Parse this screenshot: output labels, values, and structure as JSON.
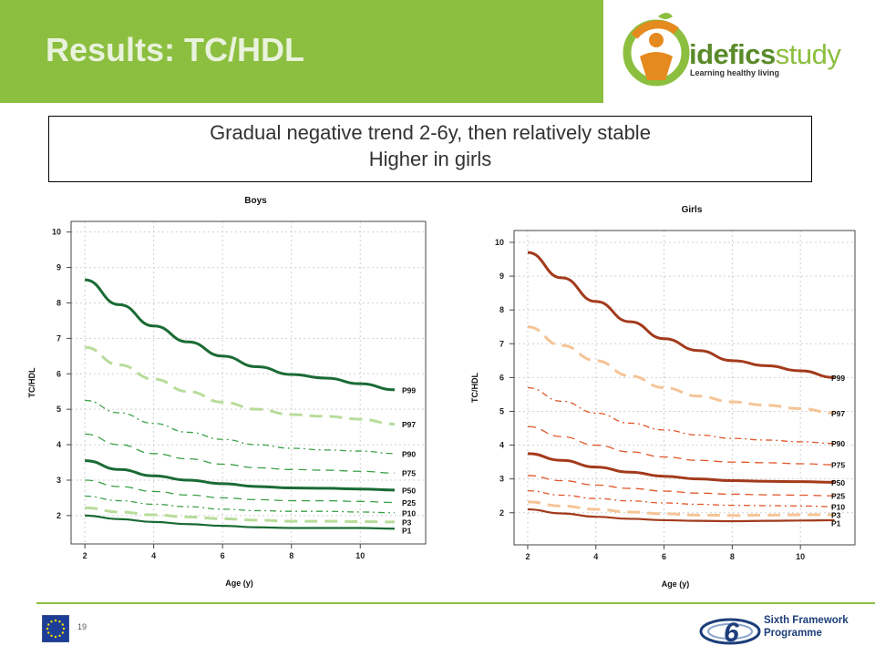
{
  "slide": {
    "title": "Results: TC/HDL",
    "summary_line1": "Gradual negative trend 2-6y, then relatively stable",
    "summary_line2": "Higher in girls",
    "page_number": "19"
  },
  "logo": {
    "wordmark_bold": "idefics",
    "wordmark_light": "study",
    "tagline": "Learning healthy living"
  },
  "footer": {
    "programme_line1": "Sixth Framework",
    "programme_line2": "Programme"
  },
  "colors": {
    "header_green": "#8cbf3f",
    "boys_dark": "#1a6b34",
    "boys_mid": "#3da14a",
    "boys_light": "#b8dc9a",
    "girls_dark": "#a33a1c",
    "girls_mid": "#e0562a",
    "girls_light": "#f5c496",
    "eu_blue": "#1d3e96",
    "eu_star": "#ffdd00"
  },
  "chart_data": [
    {
      "type": "line",
      "title": "Boys",
      "xlabel": "Age (y)",
      "ylabel": "TC/HDL",
      "xlim": [
        1.6,
        11.9
      ],
      "ylim": [
        1.2,
        10.3
      ],
      "xticks": [
        2,
        4,
        6,
        8,
        10
      ],
      "yticks": [
        2,
        3,
        4,
        5,
        6,
        7,
        8,
        9,
        10
      ],
      "grid": true,
      "x": [
        2,
        3,
        4,
        5,
        6,
        7,
        8,
        9,
        10,
        11
      ],
      "series": [
        {
          "name": "P99",
          "style": "solid",
          "width": "thick",
          "tone": "dark",
          "values": [
            8.65,
            7.95,
            7.35,
            6.9,
            6.5,
            6.2,
            5.98,
            5.88,
            5.72,
            5.55
          ]
        },
        {
          "name": "P97",
          "style": "dash",
          "width": "thick",
          "tone": "light",
          "values": [
            6.75,
            6.25,
            5.85,
            5.5,
            5.2,
            5.0,
            4.85,
            4.8,
            4.72,
            4.58
          ]
        },
        {
          "name": "P90",
          "style": "dashdot",
          "width": "thin",
          "tone": "mid",
          "values": [
            5.25,
            4.9,
            4.6,
            4.35,
            4.15,
            4.0,
            3.9,
            3.85,
            3.82,
            3.75
          ]
        },
        {
          "name": "P75",
          "style": "dash",
          "width": "thin",
          "tone": "mid",
          "values": [
            4.3,
            4.0,
            3.75,
            3.6,
            3.45,
            3.35,
            3.3,
            3.28,
            3.25,
            3.2
          ]
        },
        {
          "name": "P50",
          "style": "solid",
          "width": "thick",
          "tone": "dark",
          "values": [
            3.55,
            3.3,
            3.12,
            3.0,
            2.9,
            2.82,
            2.78,
            2.77,
            2.75,
            2.72
          ]
        },
        {
          "name": "P25",
          "style": "dash",
          "width": "thin",
          "tone": "mid",
          "values": [
            3.0,
            2.82,
            2.68,
            2.58,
            2.5,
            2.45,
            2.42,
            2.42,
            2.4,
            2.37
          ]
        },
        {
          "name": "P10",
          "style": "dashdot",
          "width": "thin",
          "tone": "mid",
          "values": [
            2.55,
            2.42,
            2.32,
            2.25,
            2.18,
            2.14,
            2.12,
            2.12,
            2.1,
            2.08
          ]
        },
        {
          "name": "P3",
          "style": "dash",
          "width": "thick",
          "tone": "light",
          "values": [
            2.22,
            2.1,
            2.02,
            1.96,
            1.91,
            1.87,
            1.84,
            1.84,
            1.83,
            1.82
          ]
        },
        {
          "name": "P1",
          "style": "solid",
          "width": "medium",
          "tone": "dark",
          "values": [
            2.0,
            1.9,
            1.82,
            1.76,
            1.71,
            1.67,
            1.65,
            1.65,
            1.65,
            1.63
          ]
        }
      ]
    },
    {
      "type": "line",
      "title": "Girls",
      "xlabel": "Age (y)",
      "ylabel": "TC/HDL",
      "xlim": [
        1.6,
        11.6
      ],
      "ylim": [
        1.05,
        10.35
      ],
      "xticks": [
        2,
        4,
        6,
        8,
        10
      ],
      "yticks": [
        2,
        3,
        4,
        5,
        6,
        7,
        8,
        9,
        10
      ],
      "grid": true,
      "x": [
        2,
        3,
        4,
        5,
        6,
        7,
        8,
        9,
        10,
        11
      ],
      "series": [
        {
          "name": "P99",
          "style": "solid",
          "width": "thick",
          "tone": "dark",
          "values": [
            9.7,
            8.95,
            8.25,
            7.65,
            7.15,
            6.8,
            6.5,
            6.35,
            6.2,
            6.0
          ]
        },
        {
          "name": "P97",
          "style": "dash",
          "width": "thick",
          "tone": "light",
          "values": [
            7.5,
            6.95,
            6.5,
            6.05,
            5.7,
            5.45,
            5.28,
            5.18,
            5.08,
            4.95
          ]
        },
        {
          "name": "P90",
          "style": "dashdot",
          "width": "thin",
          "tone": "mid",
          "values": [
            5.7,
            5.3,
            4.95,
            4.65,
            4.45,
            4.3,
            4.2,
            4.15,
            4.1,
            4.05
          ]
        },
        {
          "name": "P75",
          "style": "dash",
          "width": "thin",
          "tone": "mid",
          "values": [
            4.55,
            4.25,
            4.0,
            3.8,
            3.65,
            3.55,
            3.5,
            3.48,
            3.45,
            3.42
          ]
        },
        {
          "name": "P50",
          "style": "solid",
          "width": "thick",
          "tone": "dark",
          "values": [
            3.75,
            3.55,
            3.35,
            3.2,
            3.08,
            3.0,
            2.95,
            2.93,
            2.92,
            2.9
          ]
        },
        {
          "name": "P25",
          "style": "dash",
          "width": "thin",
          "tone": "mid",
          "values": [
            3.1,
            2.95,
            2.82,
            2.72,
            2.64,
            2.58,
            2.55,
            2.53,
            2.52,
            2.5
          ]
        },
        {
          "name": "P10",
          "style": "dashdot",
          "width": "thin",
          "tone": "mid",
          "values": [
            2.65,
            2.52,
            2.42,
            2.35,
            2.29,
            2.25,
            2.22,
            2.21,
            2.2,
            2.18
          ]
        },
        {
          "name": "P3",
          "style": "dash",
          "width": "thick",
          "tone": "light",
          "values": [
            2.32,
            2.2,
            2.1,
            2.02,
            1.97,
            1.93,
            1.92,
            1.93,
            1.94,
            1.94
          ]
        },
        {
          "name": "P1",
          "style": "solid",
          "width": "medium",
          "tone": "dark",
          "values": [
            2.1,
            1.98,
            1.88,
            1.82,
            1.78,
            1.76,
            1.75,
            1.76,
            1.77,
            1.78
          ]
        }
      ]
    }
  ]
}
